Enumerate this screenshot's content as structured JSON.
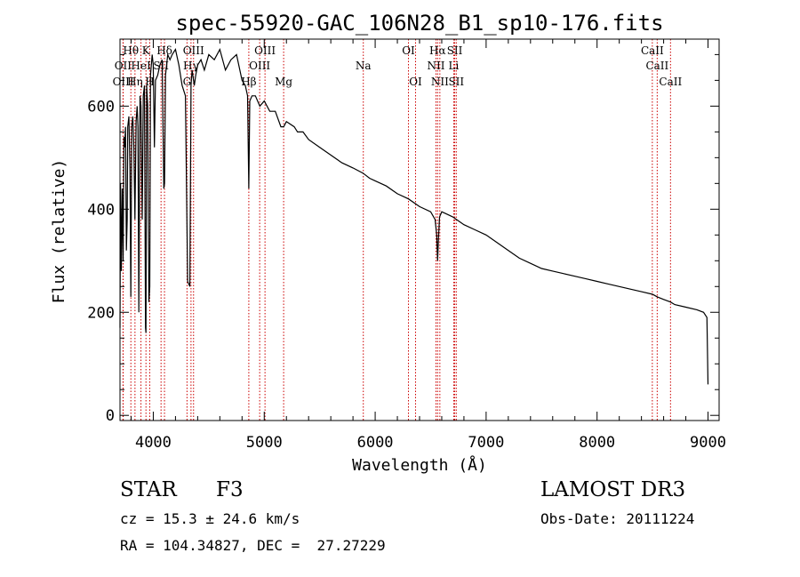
{
  "chart_data": {
    "type": "line",
    "title": "spec-55920-GAC_106N28_B1_sp10-176.fits",
    "xlabel": "Wavelength (Å)",
    "ylabel": "Flux (relative)",
    "xlim": [
      3700,
      9100
    ],
    "ylim": [
      -10,
      730
    ],
    "xticks": [
      4000,
      5000,
      6000,
      7000,
      8000,
      9000
    ],
    "yticks": [
      0,
      200,
      400,
      600
    ],
    "line_color": "#000000",
    "marker_color": "#cc0000",
    "series": [
      {
        "name": "flux",
        "x": [
          3700,
          3705,
          3712,
          3720,
          3728,
          3735,
          3742,
          3750,
          3758,
          3765,
          3770,
          3780,
          3790,
          3798,
          3806,
          3815,
          3825,
          3835,
          3845,
          3855,
          3862,
          3870,
          3880,
          3889,
          3900,
          3910,
          3920,
          3930,
          3934,
          3940,
          3950,
          3960,
          3968,
          3975,
          3990,
          4000,
          4010,
          4020,
          4040,
          4060,
          4080,
          4095,
          4101,
          4110,
          4130,
          4150,
          4170,
          4200,
          4230,
          4260,
          4290,
          4310,
          4330,
          4340,
          4350,
          4370,
          4383,
          4400,
          4430,
          4460,
          4500,
          4550,
          4600,
          4650,
          4700,
          4750,
          4800,
          4830,
          4850,
          4861,
          4870,
          4890,
          4920,
          4960,
          5000,
          5050,
          5100,
          5150,
          5175,
          5200,
          5270,
          5300,
          5350,
          5400,
          5500,
          5600,
          5700,
          5800,
          5890,
          5950,
          6000,
          6100,
          6200,
          6300,
          6400,
          6500,
          6540,
          6555,
          6563,
          6570,
          6580,
          6600,
          6650,
          6700,
          6800,
          6900,
          7000,
          7100,
          7200,
          7300,
          7400,
          7500,
          7600,
          7700,
          7800,
          7900,
          8000,
          8100,
          8200,
          8300,
          8400,
          8500,
          8542,
          8600,
          8662,
          8700,
          8800,
          8900,
          8960,
          8990,
          9000
        ],
        "y": [
          170,
          450,
          280,
          440,
          300,
          540,
          520,
          560,
          320,
          380,
          560,
          580,
          480,
          230,
          560,
          580,
          520,
          380,
          570,
          600,
          560,
          200,
          620,
          600,
          380,
          620,
          640,
          170,
          160,
          640,
          600,
          220,
          250,
          660,
          700,
          680,
          520,
          650,
          660,
          680,
          690,
          440,
          450,
          660,
          700,
          690,
          700,
          710,
          680,
          640,
          620,
          260,
          250,
          640,
          670,
          640,
          660,
          680,
          690,
          670,
          700,
          690,
          710,
          670,
          690,
          700,
          650,
          640,
          620,
          440,
          610,
          620,
          620,
          600,
          610,
          590,
          590,
          560,
          560,
          570,
          560,
          550,
          550,
          535,
          520,
          505,
          490,
          480,
          470,
          460,
          455,
          445,
          430,
          420,
          405,
          395,
          380,
          350,
          300,
          340,
          385,
          395,
          390,
          385,
          370,
          360,
          350,
          335,
          320,
          305,
          295,
          285,
          280,
          275,
          270,
          265,
          260,
          255,
          250,
          245,
          240,
          235,
          230,
          225,
          220,
          215,
          210,
          205,
          200,
          190,
          60
        ]
      }
    ],
    "line_markers": [
      {
        "label": "Hθ",
        "x": 3798,
        "row": 1
      },
      {
        "label": "OII",
        "x": 3727,
        "row": 2
      },
      {
        "label": "OIII",
        "x": 3729,
        "row": 3
      },
      {
        "label": "Hη",
        "x": 3835,
        "row": 3
      },
      {
        "label": "K",
        "x": 3934,
        "row": 1
      },
      {
        "label": "HeI",
        "x": 3889,
        "row": 2
      },
      {
        "label": "H",
        "x": 3968,
        "row": 3
      },
      {
        "label": "Hδ",
        "x": 4101,
        "row": 1
      },
      {
        "label": "SII",
        "x": 4070,
        "row": 2
      },
      {
        "label": "OIII",
        "x": 4363,
        "row": 1
      },
      {
        "label": "Hγ",
        "x": 4340,
        "row": 2
      },
      {
        "label": "G",
        "x": 4304,
        "row": 3
      },
      {
        "label": "OIII",
        "x": 5007,
        "row": 1
      },
      {
        "label": "OIII",
        "x": 4959,
        "row": 2
      },
      {
        "label": "Hβ",
        "x": 4861,
        "row": 3
      },
      {
        "label": "Mg",
        "x": 5175,
        "row": 3
      },
      {
        "label": "Na",
        "x": 5893,
        "row": 2
      },
      {
        "label": "OI",
        "x": 6300,
        "row": 1
      },
      {
        "label": "OI",
        "x": 6364,
        "row": 3
      },
      {
        "label": "Hα",
        "x": 6563,
        "row": 1
      },
      {
        "label": "SII",
        "x": 6717,
        "row": 1
      },
      {
        "label": "NII",
        "x": 6548,
        "row": 2
      },
      {
        "label": "Li",
        "x": 6708,
        "row": 2
      },
      {
        "label": "NII",
        "x": 6583,
        "row": 3
      },
      {
        "label": "SII",
        "x": 6731,
        "row": 3
      },
      {
        "label": "CaII",
        "x": 8498,
        "row": 1
      },
      {
        "label": "CaII",
        "x": 8542,
        "row": 2
      },
      {
        "label": "CaII",
        "x": 8662,
        "row": 3
      }
    ]
  },
  "info": {
    "object_class": "STAR",
    "subclass": "F3",
    "survey": "LAMOST DR3",
    "redshift": "cz = 15.3 ± 24.6 km/s",
    "obs_date": "Obs-Date: 20111224",
    "coordinates": "RA = 104.34827, DEC =  27.27229"
  }
}
